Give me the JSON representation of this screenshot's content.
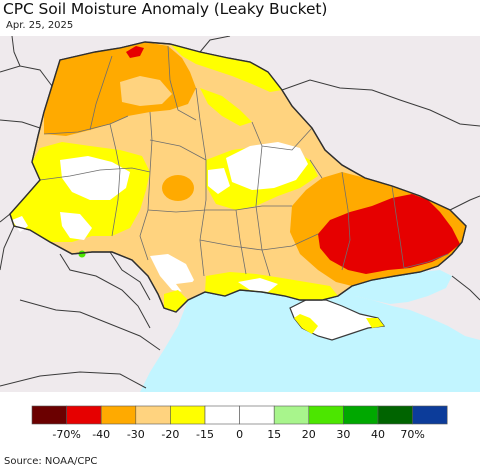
{
  "title": "CPC Soil Moisture Anomaly (Leaky Bucket)",
  "date": "Apr. 25, 2025",
  "source": "Source: NOAA/CPC",
  "colors": {
    "land_outside": "#efeaed",
    "sea": "#c2f5ff",
    "border": "#3a3a3a",
    "oblast_border": "#6e6e6e"
  },
  "legend": {
    "bins": [
      {
        "color": "#6b0000"
      },
      {
        "color": "#e60000"
      },
      {
        "color": "#ffaa00"
      },
      {
        "color": "#ffd37f"
      },
      {
        "color": "#ffff00"
      },
      {
        "color": "#ffffff"
      },
      {
        "color": "#ffffff"
      },
      {
        "color": "#a8f58c"
      },
      {
        "color": "#4ce600"
      },
      {
        "color": "#00a800"
      },
      {
        "color": "#006400"
      },
      {
        "color": "#0c3c9a"
      }
    ],
    "labels": [
      "-70%",
      "-40",
      "-30",
      "-20",
      "-15",
      "0",
      "15",
      "20",
      "30",
      "40",
      "70%"
    ]
  }
}
